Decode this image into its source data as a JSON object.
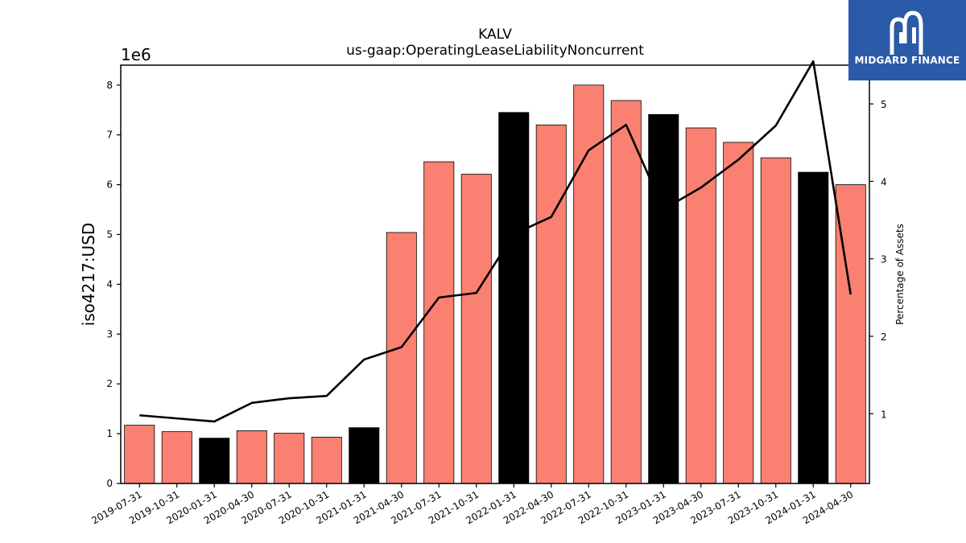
{
  "brand": {
    "logo_text": "MIDGARD FINANCE",
    "bg_color": "#2b5aa8"
  },
  "chart_data": {
    "type": "bar",
    "title": "KALV",
    "subtitle": "us-gaap:OperatingLeaseLiabilityNoncurrent",
    "ylabel": "iso4217:USD",
    "y_exponent_label": "1e6",
    "y2label": "Percentage of Assets",
    "ylim": [
      0,
      8400000
    ],
    "y2lim": [
      0.1,
      5.5
    ],
    "yticks": [
      0,
      1000000,
      2000000,
      3000000,
      4000000,
      5000000,
      6000000,
      7000000,
      8000000
    ],
    "ytick_labels": [
      "0",
      "1",
      "2",
      "3",
      "4",
      "5",
      "6",
      "7",
      "8"
    ],
    "y2ticks": [
      1,
      2,
      3,
      4,
      5
    ],
    "y2tick_labels": [
      "1",
      "2",
      "3",
      "4",
      "5"
    ],
    "categories": [
      "2019-07-31",
      "2019-10-31",
      "2020-01-31",
      "2020-04-30",
      "2020-07-31",
      "2020-10-31",
      "2021-01-31",
      "2021-04-30",
      "2021-07-31",
      "2021-10-31",
      "2022-01-31",
      "2022-04-30",
      "2022-07-31",
      "2022-10-31",
      "2023-01-31",
      "2023-04-30",
      "2023-07-31",
      "2023-10-31",
      "2024-01-31",
      "2024-04-30"
    ],
    "series": [
      {
        "values": [
          1170000,
          1040000,
          910000,
          1060000,
          1010000,
          930000,
          1120000,
          5040000,
          6460000,
          6210000,
          7450000,
          7200000,
          8000000,
          7690000,
          7410000,
          7140000,
          6850000,
          6540000,
          6250000,
          6000000
        ],
        "bar_colors": [
          "#fa8072",
          "#fa8072",
          "#000000",
          "#fa8072",
          "#fa8072",
          "#fa8072",
          "#000000",
          "#fa8072",
          "#fa8072",
          "#fa8072",
          "#000000",
          "#fa8072",
          "#fa8072",
          "#fa8072",
          "#000000",
          "#fa8072",
          "#fa8072",
          "#fa8072",
          "#000000",
          "#fa8072"
        ]
      },
      {
        "type": "line",
        "axis": "right",
        "color": "#000000",
        "values": [
          0.98,
          0.94,
          0.9,
          1.14,
          1.2,
          1.23,
          1.7,
          1.86,
          2.5,
          2.56,
          3.32,
          3.54,
          4.4,
          4.73,
          3.64,
          3.92,
          4.28,
          4.72,
          5.55,
          2.54
        ]
      }
    ],
    "grid": false,
    "legend": "none"
  }
}
